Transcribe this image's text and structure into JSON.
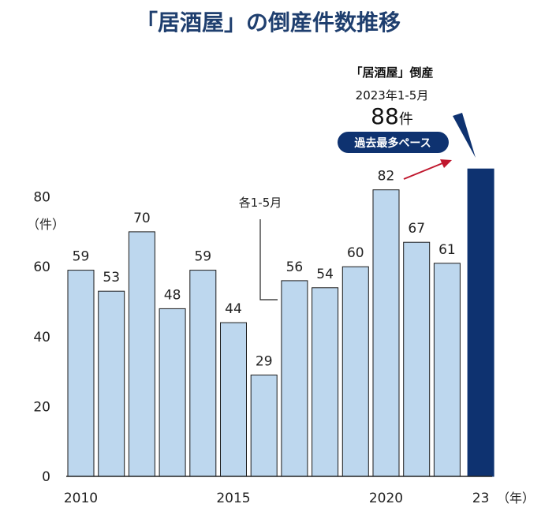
{
  "chart_data": {
    "type": "bar",
    "title": "「居酒屋」の倒産件数推移",
    "ylabel": "（件）",
    "xlabel": "（年）",
    "ylim": [
      0,
      80
    ],
    "yticks": [
      0,
      20,
      40,
      60,
      80
    ],
    "categories": [
      "2010",
      "2011",
      "2012",
      "2013",
      "2014",
      "2015",
      "2016",
      "2017",
      "2018",
      "2019",
      "2020",
      "2021",
      "2022",
      "2023"
    ],
    "x_tick_labels": [
      {
        "category": "2010",
        "label": "2010"
      },
      {
        "category": "2015",
        "label": "2015"
      },
      {
        "category": "2020",
        "label": "2020"
      },
      {
        "category": "2023",
        "label": "23"
      }
    ],
    "values": [
      59,
      53,
      70,
      48,
      59,
      44,
      29,
      56,
      54,
      60,
      82,
      67,
      61,
      88
    ],
    "data_labels": [
      "59",
      "53",
      "70",
      "48",
      "59",
      "44",
      "29",
      "56",
      "54",
      "60",
      "82",
      "67",
      "61",
      ""
    ],
    "colors": {
      "bar": "#bdd7ee",
      "bar_border": "#1a1a1a",
      "highlight": "#0e3270",
      "title": "#1f3f6f",
      "arrow": "#c0182e",
      "badge_bg": "#0e3270",
      "badge_text": "#ffffff"
    },
    "annotations": {
      "period_note": "各1-5月",
      "highlight_label": "「居酒屋」倒産",
      "highlight_period": "2023年1-5月",
      "highlight_value": "88",
      "highlight_unit": "件",
      "badge": "過去最多ペース"
    }
  }
}
